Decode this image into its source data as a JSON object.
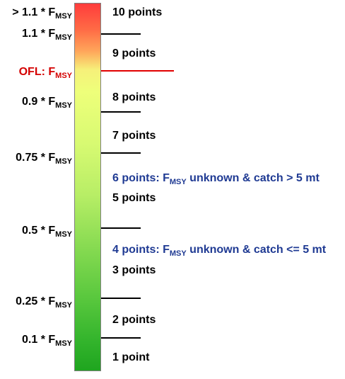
{
  "f_symbol": "F",
  "f_subscript": "MSY",
  "left_labels": [
    {
      "prefix": "> 1.1 * "
    },
    {
      "prefix": "1.1 * "
    },
    {
      "prefix": "OFL: "
    },
    {
      "prefix": "0.9 * "
    },
    {
      "prefix": "0.75 * "
    },
    {
      "prefix": "0.5 * "
    },
    {
      "prefix": "0.25 * "
    },
    {
      "prefix": "0.1 * "
    }
  ],
  "points": {
    "p10": "10 points",
    "p9": "9 points",
    "p8": "8 points",
    "p7": "7 points",
    "p5": "5 points",
    "p3": "3 points",
    "p2": "2 points",
    "p1": "1 point"
  },
  "unknown_labels": {
    "six": {
      "prefix": "6 points: ",
      "suffix": " unknown & catch > 5 mt"
    },
    "four": {
      "prefix": "4 points: ",
      "suffix": " unknown & catch <= 5 mt"
    }
  },
  "colors": {
    "scale_top": "#ff3c3c",
    "scale_bottom": "#1fa51f",
    "ofl_line": "#e20000",
    "ofl_text": "#d40000",
    "unknown_text": "#1f3a93"
  }
}
